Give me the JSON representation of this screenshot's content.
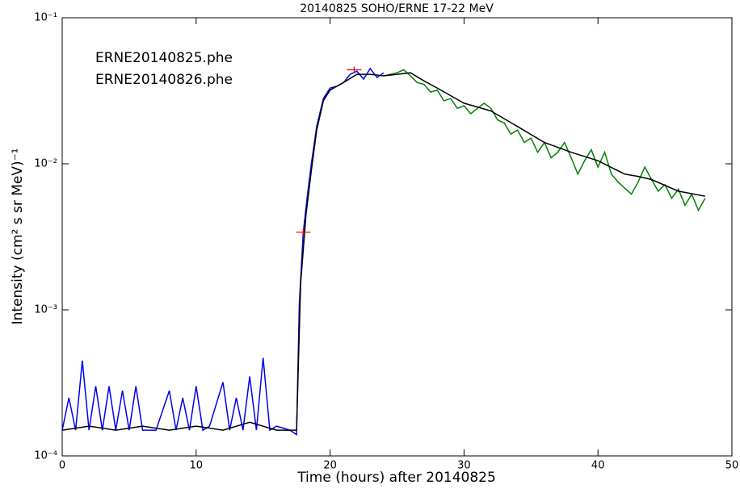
{
  "chart_data": {
    "type": "line",
    "title": "20140825 SOHO/ERNE 17-22 MeV",
    "xlabel": "Time (hours) after 20140825",
    "ylabel": "Intensity (cm² s sr MeV)⁻¹",
    "log_y": true,
    "xlim": [
      0,
      50
    ],
    "ylim": [
      0.0001,
      0.1
    ],
    "xticks": [
      0,
      10,
      20,
      30,
      40,
      50
    ],
    "yticks": [
      {
        "value": 0.0001,
        "label": "10⁻⁴"
      },
      {
        "value": 0.001,
        "label": "10⁻³"
      },
      {
        "value": 0.01,
        "label": "10⁻²"
      },
      {
        "value": 0.1,
        "label": "10⁻¹"
      }
    ],
    "legend": "upper left",
    "series": [
      {
        "name": "ERNE20140825.phe",
        "color": "#0000ee",
        "x": [
          0,
          0.5,
          1,
          1.5,
          2,
          2.5,
          3,
          3.5,
          4,
          4.5,
          5,
          5.5,
          6,
          7,
          8,
          8.5,
          9,
          9.5,
          10,
          10.5,
          11,
          12,
          12.5,
          13,
          13.5,
          14,
          14.5,
          15,
          15.5,
          16,
          17,
          17.5,
          17.7,
          18,
          18.3,
          18.6,
          19,
          19.5,
          20,
          20.5,
          21,
          21.5,
          22,
          22.5,
          23,
          23.5,
          24
        ],
        "values": [
          0.00015,
          0.00025,
          0.00015,
          0.00045,
          0.00015,
          0.0003,
          0.00015,
          0.0003,
          0.00015,
          0.00028,
          0.00015,
          0.0003,
          0.00015,
          0.00015,
          0.00028,
          0.00015,
          0.00025,
          0.00015,
          0.0003,
          0.00015,
          0.00016,
          0.00032,
          0.00015,
          0.00025,
          0.00015,
          0.00035,
          0.00015,
          0.00047,
          0.00015,
          0.00016,
          0.00015,
          0.00014,
          0.0011,
          0.0034,
          0.006,
          0.01,
          0.018,
          0.028,
          0.033,
          0.034,
          0.036,
          0.041,
          0.043,
          0.038,
          0.045,
          0.039,
          0.042
        ]
      },
      {
        "name": "ERNE20140826.phe",
        "color": "#007f00",
        "x": [
          24,
          25,
          25.5,
          26,
          26.5,
          27,
          27.5,
          28,
          28.5,
          29,
          29.5,
          30,
          30.5,
          31,
          31.5,
          32,
          32.5,
          33,
          33.5,
          34,
          34.5,
          35,
          35.5,
          36,
          36.5,
          37,
          37.5,
          38,
          38.5,
          39,
          39.5,
          40,
          40.5,
          41,
          41.5,
          42,
          42.5,
          43,
          43.5,
          44,
          44.5,
          45,
          45.5,
          46,
          46.5,
          47,
          47.5,
          48
        ],
        "values": [
          0.04,
          0.042,
          0.044,
          0.04,
          0.036,
          0.035,
          0.031,
          0.032,
          0.027,
          0.028,
          0.024,
          0.025,
          0.022,
          0.024,
          0.026,
          0.024,
          0.02,
          0.019,
          0.016,
          0.017,
          0.014,
          0.015,
          0.012,
          0.014,
          0.011,
          0.012,
          0.014,
          0.011,
          0.0085,
          0.0105,
          0.0125,
          0.0095,
          0.012,
          0.0085,
          0.0075,
          0.0068,
          0.0062,
          0.0075,
          0.0095,
          0.0078,
          0.0065,
          0.0072,
          0.0058,
          0.0067,
          0.0052,
          0.0062,
          0.0048,
          0.0058
        ]
      },
      {
        "color": "#000000",
        "x": [
          0,
          2,
          4,
          6,
          8,
          10,
          12,
          14,
          16,
          17.5,
          17.8,
          18.2,
          18.6,
          19,
          19.5,
          20,
          21,
          22,
          23,
          24,
          25,
          26,
          27,
          28,
          30,
          32,
          34,
          36,
          38,
          40,
          42,
          43,
          44,
          46,
          48
        ],
        "values": [
          0.00015,
          0.00016,
          0.00015,
          0.00016,
          0.00015,
          0.00016,
          0.00015,
          0.00017,
          0.00015,
          0.00015,
          0.0015,
          0.0045,
          0.009,
          0.017,
          0.027,
          0.032,
          0.036,
          0.041,
          0.041,
          0.04,
          0.041,
          0.042,
          0.037,
          0.033,
          0.026,
          0.023,
          0.018,
          0.014,
          0.012,
          0.0105,
          0.0085,
          0.0082,
          0.0078,
          0.0065,
          0.006
        ]
      }
    ],
    "markers": {
      "x": [
        21.8,
        18
      ],
      "values": [
        0.044,
        0.0034
      ],
      "color": "#e00000"
    }
  }
}
